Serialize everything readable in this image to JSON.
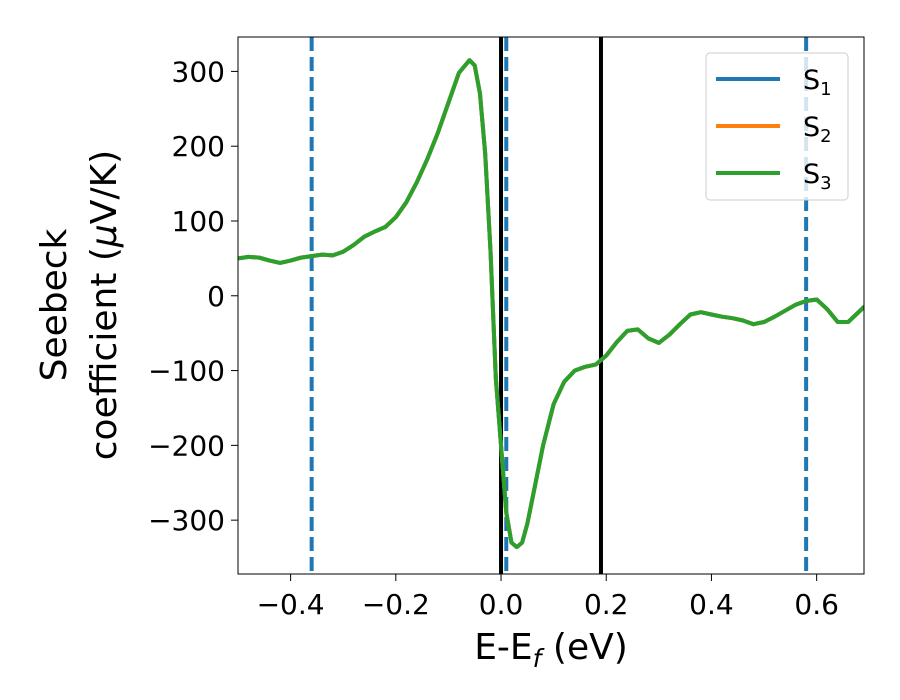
{
  "chart_data": {
    "type": "line",
    "xlabel": "E-E",
    "xlabel_sub": "f",
    "xlabel_unit": " (eV)",
    "ylabel_line1": "Seebeck",
    "ylabel_line2": "coefficient  (",
    "ylabel_mu": "μ",
    "ylabel_unit": "V/K)",
    "xlim": [
      -0.5,
      0.69
    ],
    "ylim": [
      -372,
      346
    ],
    "xticks": [
      -0.4,
      -0.2,
      0.0,
      0.2,
      0.4,
      0.6
    ],
    "xtick_labels": [
      "−0.4",
      "−0.2",
      "0.0",
      "0.2",
      "0.4",
      "0.6"
    ],
    "yticks": [
      300,
      200,
      100,
      0,
      -100,
      -200,
      -300
    ],
    "ytick_labels": [
      "300",
      "200",
      "100",
      "0",
      "−100",
      "−200",
      "−300"
    ],
    "grid": false,
    "legend_position": "top-right",
    "vlines_solid": [
      0.0,
      0.19
    ],
    "vlines_dashed": [
      -0.36,
      0.01,
      0.58
    ],
    "colors": {
      "solid_vline": "#000000",
      "dashed_vline": "#1f77b4"
    },
    "x": [
      -0.5,
      -0.48,
      -0.46,
      -0.44,
      -0.42,
      -0.4,
      -0.38,
      -0.36,
      -0.34,
      -0.32,
      -0.3,
      -0.28,
      -0.26,
      -0.24,
      -0.22,
      -0.2,
      -0.18,
      -0.16,
      -0.14,
      -0.12,
      -0.1,
      -0.08,
      -0.06,
      -0.05,
      -0.04,
      -0.03,
      -0.02,
      -0.01,
      0.0,
      0.01,
      0.02,
      0.03,
      0.04,
      0.05,
      0.06,
      0.08,
      0.1,
      0.12,
      0.14,
      0.16,
      0.18,
      0.2,
      0.22,
      0.24,
      0.26,
      0.28,
      0.3,
      0.32,
      0.34,
      0.36,
      0.38,
      0.4,
      0.42,
      0.44,
      0.46,
      0.48,
      0.5,
      0.52,
      0.54,
      0.56,
      0.58,
      0.6,
      0.62,
      0.64,
      0.66,
      0.69
    ],
    "series": [
      {
        "name": "S",
        "sub": "1",
        "color": "#1f77b4",
        "values": [
          50,
          52,
          51,
          47,
          44,
          47,
          51,
          53,
          55,
          54,
          59,
          68,
          79,
          86,
          92,
          105,
          125,
          152,
          183,
          218,
          258,
          298,
          315,
          308,
          270,
          190,
          60,
          -110,
          -200,
          -290,
          -330,
          -336,
          -330,
          -305,
          -270,
          -200,
          -145,
          -115,
          -100,
          -95,
          -92,
          -80,
          -62,
          -47,
          -45,
          -57,
          -63,
          -52,
          -38,
          -25,
          -22,
          -25,
          -28,
          -30,
          -33,
          -38,
          -35,
          -28,
          -20,
          -12,
          -7,
          -5,
          -18,
          -35,
          -35,
          -15
        ]
      },
      {
        "name": "S",
        "sub": "2",
        "color": "#ff7f0e",
        "values": [
          50,
          52,
          51,
          47,
          44,
          47,
          51,
          53,
          55,
          54,
          59,
          68,
          79,
          86,
          92,
          105,
          125,
          152,
          183,
          218,
          258,
          298,
          315,
          308,
          270,
          190,
          60,
          -110,
          -200,
          -290,
          -330,
          -336,
          -330,
          -305,
          -270,
          -200,
          -145,
          -115,
          -100,
          -95,
          -92,
          -80,
          -62,
          -47,
          -45,
          -57,
          -63,
          -52,
          -38,
          -25,
          -22,
          -25,
          -28,
          -30,
          -33,
          -38,
          -35,
          -28,
          -20,
          -12,
          -7,
          -5,
          -18,
          -35,
          -35,
          -15
        ]
      },
      {
        "name": "S",
        "sub": "3",
        "color": "#2ca02c",
        "values": [
          50,
          52,
          51,
          47,
          44,
          47,
          51,
          53,
          55,
          54,
          59,
          68,
          79,
          86,
          92,
          105,
          125,
          152,
          183,
          218,
          258,
          298,
          315,
          308,
          270,
          190,
          60,
          -110,
          -200,
          -290,
          -330,
          -336,
          -330,
          -305,
          -270,
          -200,
          -145,
          -115,
          -100,
          -95,
          -92,
          -80,
          -62,
          -47,
          -45,
          -57,
          -63,
          -52,
          -38,
          -25,
          -22,
          -25,
          -28,
          -30,
          -33,
          -38,
          -35,
          -28,
          -20,
          -12,
          -7,
          -5,
          -18,
          -35,
          -35,
          -15
        ]
      }
    ]
  }
}
